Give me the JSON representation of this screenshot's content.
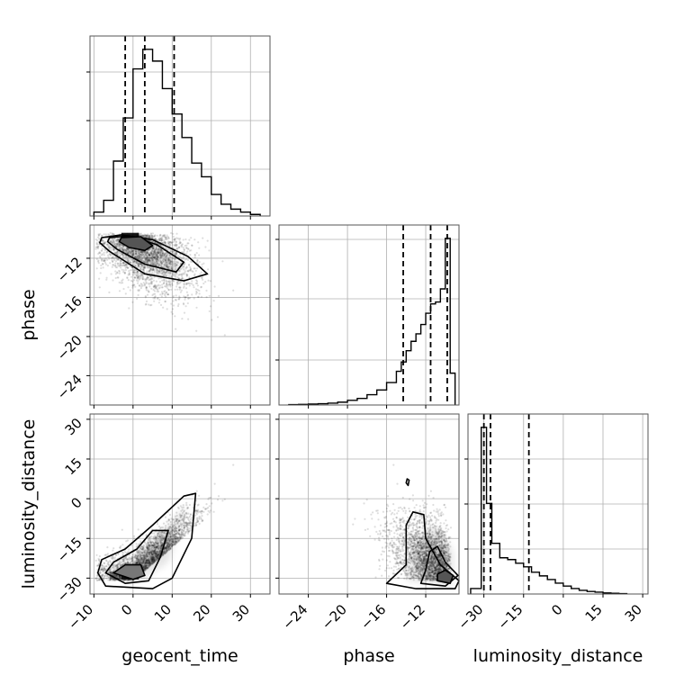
{
  "chart_data": {
    "type": "corner",
    "parameters": [
      "geocent_time",
      "phase",
      "luminosity_distance"
    ],
    "quantile_lines": {
      "geocent_time": [
        -2,
        3,
        10.5
      ],
      "phase": [
        -14.3,
        -11.5,
        -9.8
      ],
      "luminosity_distance": [
        -30,
        -27.5,
        -13
      ]
    },
    "axes": {
      "geocent_time": {
        "range": [
          -11,
          35
        ],
        "ticks": [
          -10,
          0,
          10,
          20,
          30
        ],
        "tick_labels": [
          "−10",
          "0",
          "10",
          "20",
          "30"
        ]
      },
      "phase": {
        "range": [
          -27,
          -8.6
        ],
        "ticks": [
          -24,
          -20,
          -16,
          -12
        ],
        "tick_labels": [
          "−24",
          "−20",
          "−16",
          "−12"
        ]
      },
      "luminosity_distance": {
        "range": [
          -36,
          32
        ],
        "ticks": [
          -30,
          -15,
          0,
          15,
          30
        ],
        "tick_labels": [
          "−30",
          "−15",
          "0",
          "15",
          "30"
        ]
      }
    },
    "histograms": {
      "geocent_time": {
        "bin_edges": [
          -10,
          -7.5,
          -5,
          -2.5,
          0,
          2.5,
          5,
          7.5,
          10,
          12.5,
          15,
          17.5,
          20,
          22.5,
          25,
          27.5,
          30,
          32.5
        ],
        "counts": [
          0.2,
          0.8,
          2.8,
          5.0,
          7.5,
          8.5,
          7.9,
          6.5,
          5.2,
          4.0,
          2.7,
          2.0,
          1.1,
          0.6,
          0.35,
          0.2,
          0.08
        ]
      },
      "phase": {
        "bin_edges": [
          -26,
          -25,
          -24,
          -23,
          -22,
          -21,
          -20,
          -19,
          -18,
          -17,
          -16,
          -15,
          -14.5,
          -14,
          -13.5,
          -13,
          -12.5,
          -12,
          -11.5,
          -11,
          -10.5,
          -10,
          -9.5,
          -9
        ],
        "counts": [
          0.02,
          0.03,
          0.05,
          0.07,
          0.1,
          0.15,
          0.25,
          0.35,
          0.55,
          0.8,
          1.2,
          1.8,
          2.3,
          2.9,
          3.4,
          3.8,
          4.3,
          4.9,
          5.4,
          5.5,
          6.2,
          8.9,
          1.7
        ]
      },
      "luminosity_distance": {
        "bin_edges": [
          -35,
          -31,
          -29,
          -27,
          -24,
          -21,
          -18,
          -15,
          -12,
          -9,
          -6,
          -3,
          0,
          3,
          6,
          9,
          12,
          15,
          18,
          21,
          24
        ],
        "counts": [
          0.15,
          4.6,
          2.5,
          1.4,
          1.0,
          0.95,
          0.85,
          0.75,
          0.6,
          0.5,
          0.4,
          0.3,
          0.22,
          0.15,
          0.1,
          0.07,
          0.05,
          0.03,
          0.02,
          0.01
        ]
      }
    },
    "grid": true,
    "scatter_color": "#000000",
    "contour_color": "#000000"
  }
}
